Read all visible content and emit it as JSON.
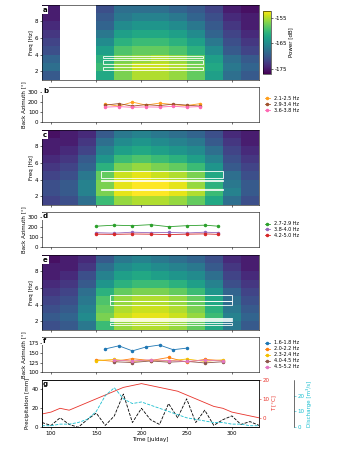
{
  "chart_data": [
    {
      "type": "heatmap",
      "panel_label": "a",
      "ylabel": "Freq [Hz]",
      "xlim": [
        90,
        330
      ],
      "xticks": [
        100,
        150,
        200,
        250,
        300
      ],
      "ylim": [
        1,
        10
      ],
      "yticks": [
        2,
        4,
        6,
        8
      ],
      "tick_labels": "y",
      "x_bins": [
        90,
        110,
        130,
        150,
        170,
        190,
        210,
        230,
        250,
        270,
        290,
        310,
        330
      ],
      "y_bins": [
        1,
        2,
        3,
        4,
        5,
        6,
        7,
        8,
        9,
        10
      ],
      "cells": [
        [
          -170,
          null,
          null,
          -162,
          -157,
          -155,
          -155,
          -156,
          -158,
          -163,
          -168,
          -170
        ],
        [
          -168,
          null,
          null,
          -160,
          -156,
          -154,
          -154,
          -155,
          -157,
          -162,
          -167,
          -169
        ],
        [
          -169,
          null,
          null,
          -161,
          -157,
          -156,
          -155,
          -156,
          -158,
          -163,
          -168,
          -170
        ],
        [
          -171,
          null,
          null,
          -163,
          -159,
          -158,
          -158,
          -159,
          -161,
          -165,
          -170,
          -172
        ],
        [
          -172,
          null,
          null,
          -165,
          -161,
          -160,
          -160,
          -161,
          -163,
          -167,
          -171,
          -173
        ],
        [
          -173,
          null,
          null,
          -167,
          -163,
          -162,
          -162,
          -163,
          -165,
          -169,
          -172,
          -174
        ],
        [
          -174,
          null,
          null,
          -169,
          -165,
          -164,
          -164,
          -165,
          -167,
          -170,
          -173,
          -175
        ],
        [
          -175,
          null,
          null,
          -170,
          -167,
          -166,
          -166,
          -167,
          -169,
          -171,
          -174,
          -175
        ],
        [
          -175,
          null,
          null,
          -171,
          -168,
          -168,
          -168,
          -169,
          -170,
          -172,
          -175,
          -176
        ]
      ],
      "colorbar": {
        "label": "Power [dB]",
        "range": [
          -177,
          -152
        ],
        "ticks": [
          -155,
          -165,
          -175
        ]
      },
      "boxes": [
        {
          "t": [
            158,
            268
          ],
          "f": [
            2.1,
            2.5
          ]
        },
        {
          "t": [
            158,
            268
          ],
          "f": [
            2.9,
            3.4
          ]
        },
        {
          "t": [
            158,
            268
          ],
          "f": [
            3.6,
            3.8
          ]
        }
      ]
    },
    {
      "type": "line",
      "panel_label": "b",
      "ylabel": "Back Azimuth [°]",
      "xlim": [
        90,
        330
      ],
      "xticks": [
        100,
        150,
        200,
        250,
        300
      ],
      "ylim": [
        0,
        350
      ],
      "yticks": [
        0,
        100,
        200,
        300
      ],
      "tick_labels": "y",
      "legend": "center left",
      "series": [
        {
          "name": "2.1-2.5 Hz",
          "color": "#ff9f1c",
          "marker": "o",
          "x": [
            160,
            175,
            190,
            205,
            220,
            235,
            250,
            265
          ],
          "values": [
            180,
            160,
            200,
            170,
            190,
            175,
            165,
            185
          ]
        },
        {
          "name": "2.9-3.4 Hz",
          "color": "#a0522d",
          "marker": "o",
          "x": [
            160,
            175,
            190,
            205,
            220,
            235,
            250,
            265
          ],
          "values": [
            170,
            185,
            160,
            175,
            165,
            180,
            170,
            160
          ]
        },
        {
          "name": "3.6-3.8 Hz",
          "color": "#ff69b4",
          "marker": "o",
          "x": [
            160,
            175,
            190,
            205,
            220,
            235,
            250,
            265
          ],
          "values": [
            150,
            155,
            148,
            152,
            150,
            158,
            150,
            155
          ]
        }
      ]
    },
    {
      "type": "heatmap",
      "panel_label": "c",
      "ylabel": "Freq [Hz]",
      "xlim": [
        90,
        330
      ],
      "xticks": [
        100,
        150,
        200,
        250,
        300
      ],
      "ylim": [
        1,
        10
      ],
      "yticks": [
        2,
        4,
        6,
        8
      ],
      "tick_labels": "y",
      "x_bins": [
        90,
        110,
        130,
        150,
        170,
        190,
        210,
        230,
        250,
        270,
        290,
        310,
        330
      ],
      "y_bins": [
        1,
        2,
        3,
        4,
        5,
        6,
        7,
        8,
        9,
        10
      ],
      "cells": [
        [
          -172,
          -171,
          -168,
          -160,
          -156,
          -155,
          -155,
          -156,
          -158,
          -162,
          -168,
          -171
        ],
        [
          -171,
          -170,
          -166,
          -157,
          -153,
          -152,
          -152,
          -153,
          -155,
          -160,
          -166,
          -170
        ],
        [
          -171,
          -170,
          -166,
          -157,
          -153,
          -152,
          -152,
          -153,
          -156,
          -161,
          -167,
          -170
        ],
        [
          -172,
          -171,
          -167,
          -158,
          -154,
          -153,
          -154,
          -155,
          -157,
          -162,
          -168,
          -171
        ],
        [
          -173,
          -172,
          -169,
          -161,
          -157,
          -156,
          -157,
          -158,
          -160,
          -164,
          -170,
          -172
        ],
        [
          -174,
          -173,
          -170,
          -164,
          -160,
          -159,
          -160,
          -161,
          -163,
          -166,
          -171,
          -173
        ],
        [
          -175,
          -174,
          -172,
          -166,
          -163,
          -162,
          -163,
          -164,
          -165,
          -168,
          -172,
          -174
        ],
        [
          -175,
          -175,
          -173,
          -168,
          -165,
          -164,
          -165,
          -166,
          -167,
          -170,
          -173,
          -175
        ],
        [
          -176,
          -175,
          -174,
          -170,
          -167,
          -166,
          -167,
          -168,
          -169,
          -171,
          -174,
          -175
        ]
      ],
      "boxes": [
        {
          "t": [
            155,
            290
          ],
          "f": [
            2.7,
            2.9
          ]
        },
        {
          "t": [
            155,
            290
          ],
          "f": [
            3.8,
            4.0
          ]
        },
        {
          "t": [
            155,
            290
          ],
          "f": [
            4.2,
            5.0
          ]
        }
      ]
    },
    {
      "type": "line",
      "panel_label": "d",
      "ylabel": "Back Azimuth [°]",
      "xlim": [
        90,
        330
      ],
      "xticks": [
        100,
        150,
        200,
        250,
        300
      ],
      "ylim": [
        0,
        350
      ],
      "yticks": [
        0,
        100,
        200,
        300
      ],
      "tick_labels": "y",
      "legend": "center left",
      "series": [
        {
          "name": "2.7-2.9 Hz",
          "color": "#2ca02c",
          "marker": "o",
          "x": [
            150,
            170,
            190,
            210,
            230,
            250,
            270,
            285
          ],
          "values": [
            210,
            220,
            215,
            225,
            205,
            215,
            220,
            210
          ]
        },
        {
          "name": "3.8-4.0 Hz",
          "color": "#9467bd",
          "marker": "o",
          "x": [
            150,
            170,
            190,
            210,
            230,
            250,
            270,
            285
          ],
          "values": [
            145,
            140,
            150,
            145,
            148,
            142,
            150,
            145
          ]
        },
        {
          "name": "4.2-5.0 Hz",
          "color": "#d62728",
          "marker": "o",
          "x": [
            150,
            170,
            190,
            210,
            230,
            250,
            270,
            285
          ],
          "values": [
            130,
            128,
            132,
            130,
            126,
            130,
            133,
            128
          ]
        }
      ]
    },
    {
      "type": "heatmap",
      "panel_label": "e",
      "ylabel": "Freq [Hz]",
      "xlim": [
        90,
        330
      ],
      "xticks": [
        100,
        150,
        200,
        250,
        300
      ],
      "ylim": [
        1,
        10
      ],
      "yticks": [
        2,
        4,
        6,
        8
      ],
      "tick_labels": "y",
      "x_bins": [
        90,
        110,
        130,
        150,
        170,
        190,
        210,
        230,
        250,
        270,
        290,
        310,
        330
      ],
      "y_bins": [
        1,
        2,
        3,
        4,
        5,
        6,
        7,
        8,
        9,
        10
      ],
      "cells": [
        [
          -171,
          -170,
          -167,
          -160,
          -156,
          -155,
          -155,
          -156,
          -158,
          -162,
          -167,
          -170
        ],
        [
          -170,
          -169,
          -165,
          -157,
          -154,
          -153,
          -153,
          -154,
          -156,
          -160,
          -166,
          -169
        ],
        [
          -171,
          -170,
          -166,
          -158,
          -155,
          -154,
          -154,
          -155,
          -157,
          -161,
          -167,
          -170
        ],
        [
          -172,
          -171,
          -167,
          -159,
          -156,
          -155,
          -155,
          -156,
          -158,
          -162,
          -168,
          -171
        ],
        [
          -173,
          -172,
          -168,
          -161,
          -158,
          -157,
          -157,
          -158,
          -160,
          -164,
          -169,
          -172
        ],
        [
          -174,
          -173,
          -170,
          -164,
          -161,
          -160,
          -160,
          -161,
          -163,
          -166,
          -171,
          -173
        ],
        [
          -175,
          -174,
          -171,
          -166,
          -163,
          -162,
          -163,
          -164,
          -165,
          -168,
          -172,
          -174
        ],
        [
          -175,
          -175,
          -173,
          -168,
          -165,
          -164,
          -165,
          -166,
          -167,
          -170,
          -173,
          -175
        ],
        [
          -176,
          -175,
          -174,
          -170,
          -167,
          -166,
          -167,
          -168,
          -169,
          -171,
          -174,
          -175
        ]
      ],
      "boxes": [
        {
          "t": [
            165,
            300
          ],
          "f": [
            1.6,
            1.8
          ]
        },
        {
          "t": [
            165,
            300
          ],
          "f": [
            2.0,
            2.2
          ]
        },
        {
          "t": [
            165,
            300
          ],
          "f": [
            2.3,
            2.4
          ]
        },
        {
          "t": [
            165,
            300
          ],
          "f": [
            4.0,
            4.5
          ]
        },
        {
          "t": [
            165,
            300
          ],
          "f": [
            4.5,
            5.2
          ]
        }
      ]
    },
    {
      "type": "line",
      "panel_label": "f",
      "ylabel": "Back Azimuth [°]",
      "xlim": [
        90,
        330
      ],
      "xticks": [
        100,
        150,
        200,
        250,
        300
      ],
      "ylim": [
        100,
        190
      ],
      "yticks": [
        100,
        125,
        150,
        175
      ],
      "tick_labels": "y",
      "legend": "center left",
      "series": [
        {
          "name": "1.6-1.8 Hz",
          "color": "#1f77b4",
          "marker": "o",
          "x": [
            160,
            175,
            190,
            205,
            220,
            235,
            250
          ],
          "values": [
            160,
            168,
            155,
            165,
            170,
            158,
            162
          ]
        },
        {
          "name": "2.0-2.2 Hz",
          "color": "#ff7f0e",
          "marker": "o",
          "x": [
            150,
            170,
            190,
            210,
            230,
            250,
            270,
            290
          ],
          "values": [
            132,
            128,
            135,
            130,
            138,
            126,
            133,
            130
          ]
        },
        {
          "name": "2.3-2.4 Hz",
          "color": "#f5c000",
          "marker": "o",
          "x": [
            150,
            170,
            190,
            210,
            230,
            250,
            270,
            290
          ],
          "values": [
            130,
            133,
            128,
            131,
            129,
            134,
            128,
            132
          ]
        },
        {
          "name": "4.0-4.5 Hz",
          "color": "#8c564b",
          "marker": "o",
          "x": [
            170,
            190,
            210,
            230,
            250,
            270,
            290
          ],
          "values": [
            127,
            125,
            129,
            126,
            128,
            124,
            127
          ]
        },
        {
          "name": "4.5-5.2 Hz",
          "color": "#e377c2",
          "marker": "o",
          "x": [
            170,
            190,
            210,
            230,
            250,
            270,
            290
          ],
          "values": [
            131,
            129,
            132,
            130,
            128,
            131,
            129
          ]
        }
      ]
    },
    {
      "type": "line",
      "panel_label": "g",
      "xlabel": "Time [julday]",
      "ylabel": "Precipitation [mm]",
      "y2label": "T [°C]",
      "y3label": "Discharge [m³/s]",
      "xlim": [
        90,
        330
      ],
      "xticks": [
        100,
        150,
        200,
        250,
        300
      ],
      "ylim": [
        0,
        50
      ],
      "yticks": [
        0,
        20,
        40
      ],
      "y2lim": [
        -5,
        20
      ],
      "y2ticks": [
        0,
        10,
        20
      ],
      "y3lim": [
        0,
        30
      ],
      "y3ticks": [
        0,
        10,
        20
      ],
      "series": [
        {
          "name": "Precipitation",
          "axis": "y",
          "color": "#000000",
          "line_style": "dashed",
          "x": [
            90,
            100,
            110,
            120,
            130,
            140,
            150,
            160,
            170,
            180,
            190,
            200,
            210,
            220,
            230,
            240,
            250,
            260,
            270,
            280,
            290,
            300,
            310,
            320,
            330
          ],
          "values": [
            5,
            2,
            10,
            3,
            0,
            8,
            15,
            2,
            12,
            35,
            5,
            20,
            8,
            3,
            25,
            10,
            30,
            5,
            18,
            2,
            8,
            12,
            3,
            6,
            2
          ]
        },
        {
          "name": "T",
          "axis": "y2",
          "color": "#e8322a",
          "line_style": "solid",
          "x": [
            90,
            100,
            110,
            120,
            130,
            140,
            150,
            160,
            170,
            180,
            190,
            200,
            210,
            220,
            230,
            240,
            250,
            260,
            270,
            280,
            290,
            300,
            310,
            320,
            330
          ],
          "values": [
            2,
            3,
            5,
            4,
            6,
            8,
            10,
            12,
            14,
            16,
            17,
            18,
            17,
            16,
            15,
            14,
            12,
            10,
            8,
            6,
            5,
            3,
            2,
            1,
            0
          ]
        },
        {
          "name": "Discharge",
          "axis": "y3",
          "color": "#17becf",
          "line_style": "dashed",
          "x": [
            90,
            100,
            110,
            120,
            130,
            140,
            150,
            160,
            170,
            180,
            190,
            200,
            210,
            220,
            230,
            240,
            250,
            260,
            270,
            280,
            290,
            300,
            310,
            320,
            330
          ],
          "values": [
            1,
            1,
            2,
            2,
            3,
            5,
            10,
            20,
            25,
            18,
            15,
            16,
            14,
            12,
            10,
            8,
            6,
            5,
            4,
            3,
            3,
            2,
            2,
            1,
            1
          ]
        }
      ]
    }
  ]
}
